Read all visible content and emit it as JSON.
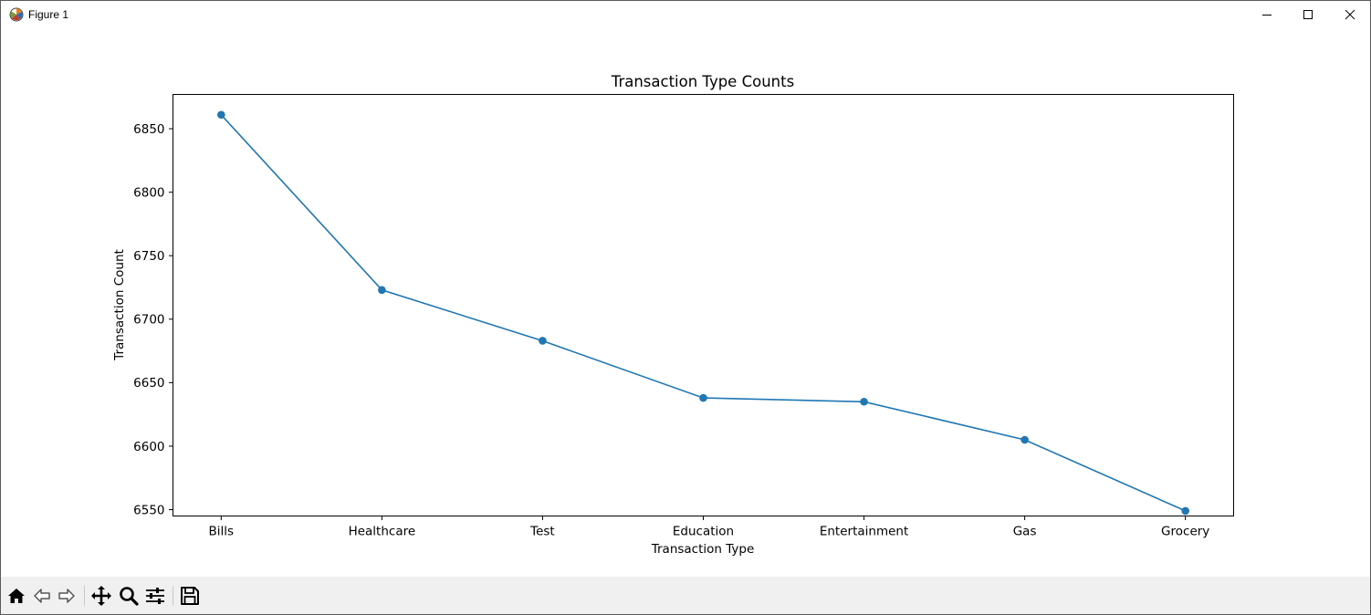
{
  "window": {
    "title": "Figure 1",
    "icon": "matplotlib-icon",
    "controls": [
      "minimize-icon",
      "maximize-icon",
      "close-icon"
    ]
  },
  "toolbar": {
    "buttons": [
      {
        "name": "home-button",
        "icon": "home-icon"
      },
      {
        "name": "back-button",
        "icon": "back-arrow-icon"
      },
      {
        "name": "forward-button",
        "icon": "forward-arrow-icon"
      },
      {
        "name": "pan-button",
        "icon": "move-icon"
      },
      {
        "name": "zoom-button",
        "icon": "magnifier-icon"
      },
      {
        "name": "configure-subplots-button",
        "icon": "sliders-icon"
      },
      {
        "name": "save-button",
        "icon": "floppy-disk-icon"
      }
    ]
  },
  "chart_data": {
    "type": "line",
    "title": "Transaction Type Counts",
    "xlabel": "Transaction Type",
    "ylabel": "Transaction Count",
    "categories": [
      "Bills",
      "Healthcare",
      "Test",
      "Education",
      "Entertainment",
      "Gas",
      "Grocery"
    ],
    "values": [
      6861,
      6723,
      6683,
      6638,
      6635,
      6605,
      6549
    ],
    "ylim": [
      6545,
      6877
    ],
    "yticks": [
      6550,
      6600,
      6650,
      6700,
      6750,
      6800,
      6850
    ],
    "marker": "circle",
    "grid": false,
    "color": "#1f77b4"
  }
}
